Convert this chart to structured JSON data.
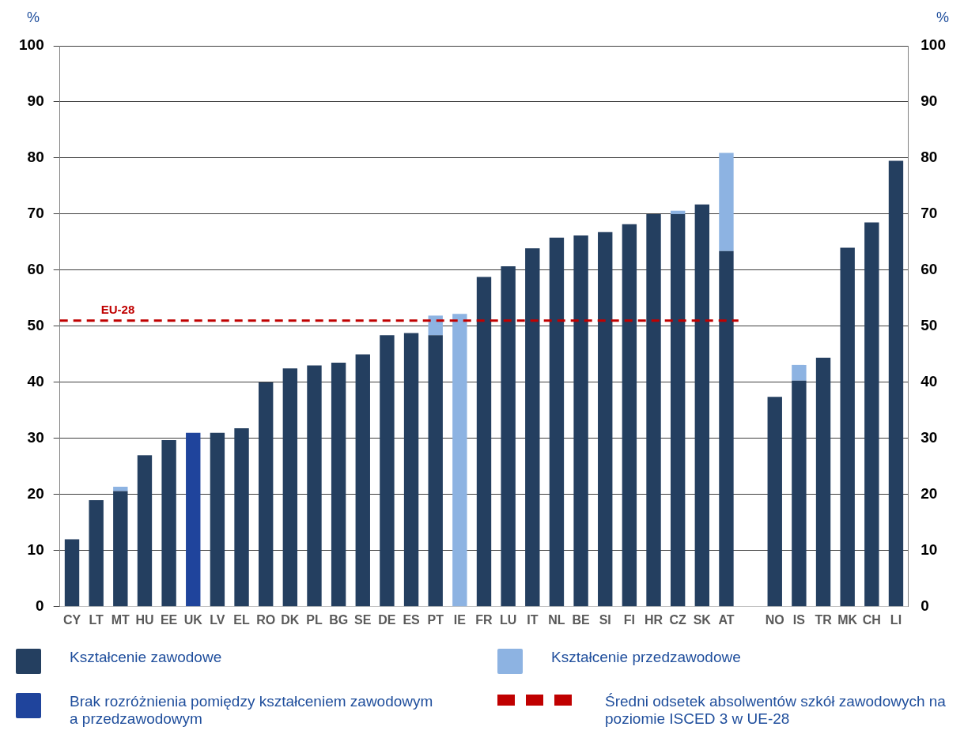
{
  "chart_data": {
    "type": "bar",
    "stacked": true,
    "ylabel": "%",
    "y2label": "%",
    "categories": [
      "CY",
      "LT",
      "MT",
      "HU",
      "EE",
      "UK",
      "LV",
      "EL",
      "RO",
      "DK",
      "PL",
      "BG",
      "SE",
      "DE",
      "ES",
      "PT",
      "IE",
      "FR",
      "LU",
      "IT",
      "NL",
      "BE",
      "SI",
      "FI",
      "HR",
      "CZ",
      "SK",
      "AT",
      null,
      "NO",
      "IS",
      "TR",
      "MK",
      "CH",
      "LI"
    ],
    "series": [
      {
        "name": "Kształcenie zawodowe",
        "color": "#243f60",
        "values": [
          12,
          19,
          20.6,
          27,
          29.7,
          null,
          31,
          31.8,
          40,
          42.5,
          43,
          43.5,
          45,
          48.4,
          48.8,
          48.4,
          null,
          58.8,
          60.7,
          63.9,
          65.8,
          66.2,
          66.8,
          68.2,
          70,
          70,
          71.7,
          63.4,
          null,
          37.4,
          40.3,
          44.4,
          64,
          68.5,
          79.5
        ]
      },
      {
        "name": "Kształcenie przedzawodowe",
        "color": "#8db3e2",
        "values": [
          null,
          null,
          0.8,
          null,
          null,
          null,
          null,
          null,
          null,
          null,
          null,
          null,
          null,
          null,
          null,
          3.5,
          52.2,
          null,
          null,
          null,
          null,
          null,
          null,
          null,
          null,
          0.6,
          null,
          17.5,
          null,
          null,
          2.8,
          null,
          null,
          null,
          null
        ]
      },
      {
        "name": "Brak rozróżnienia pomiędzy kształceniem zawodowym a przedzawodowym",
        "color": "#1f449c",
        "values": [
          null,
          null,
          null,
          null,
          null,
          31,
          null,
          null,
          null,
          null,
          null,
          null,
          null,
          null,
          null,
          null,
          null,
          null,
          null,
          null,
          null,
          null,
          null,
          null,
          null,
          null,
          null,
          null,
          null,
          null,
          null,
          null,
          null,
          null,
          null
        ]
      }
    ],
    "ylim": [
      0,
      100
    ],
    "yticks": [
      0,
      10,
      20,
      30,
      40,
      50,
      60,
      70,
      80,
      90,
      100
    ],
    "y2lim": [
      0,
      100
    ],
    "y2ticks": [
      0,
      10,
      20,
      30,
      40,
      50,
      60,
      70,
      80,
      90,
      100
    ],
    "grid": "y",
    "ref_lines": [
      {
        "axis": "y",
        "value": 51,
        "label": "EU-28",
        "color": "#c00000",
        "line_style": "dashed"
      }
    ],
    "annotations": [
      "Średni odsetek absolwentów szkół zawodowych na poziomie ISCED 3 w UE-28"
    ],
    "legend": "bottom"
  }
}
